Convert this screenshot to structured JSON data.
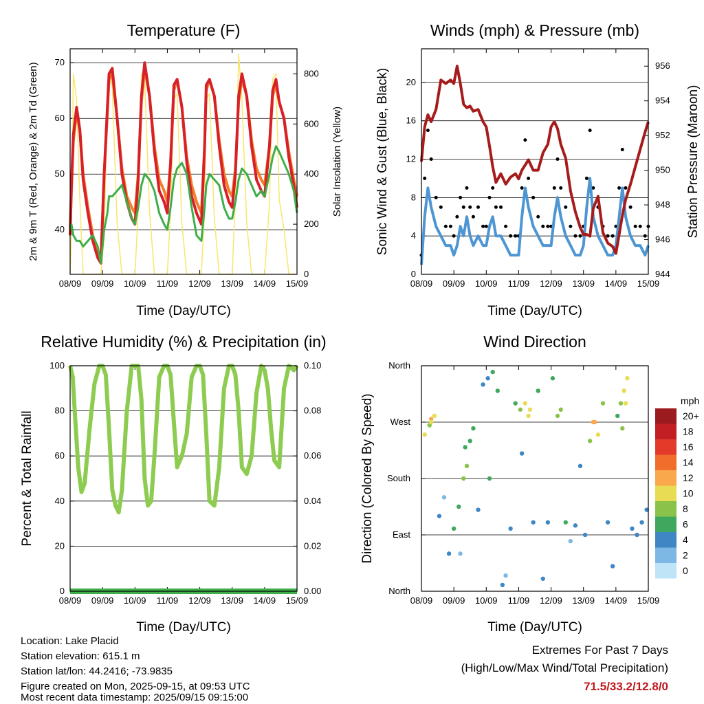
{
  "x_ticks": [
    "08/09",
    "09/09",
    "10/09",
    "11/09",
    "12/09",
    "13/09",
    "14/09",
    "15/09"
  ],
  "colors": {
    "temp2m": "#d72027",
    "temp9m": "#f47f2a",
    "dewpoint": "#3fae49",
    "solar": "#f9e66a",
    "wind": "#4d96d3",
    "gust": "#000000",
    "pressure": "#a61c1c",
    "rh": "#8dcc50",
    "precip": "#3fae49"
  },
  "chart_data": [
    {
      "type": "line",
      "title": "Temperature (F)",
      "xlabel": "Time (Day/UTC)",
      "ylabel": "2m & 9m T (Red, Orange) & 2m Td (Green)",
      "y2label": "Solar Insolation (Yellow)",
      "ylim": [
        32,
        72.5
      ],
      "y_ticks": [
        40,
        50,
        60,
        70
      ],
      "y2lim": [
        0,
        900
      ],
      "y2_ticks": [
        0,
        200,
        400,
        600,
        800
      ],
      "x": [
        0,
        0.04,
        0.1,
        0.2,
        0.3,
        0.4,
        0.55,
        0.7,
        0.85,
        0.95,
        1.05,
        1.15,
        1.2,
        1.3,
        1.45,
        1.6,
        1.75,
        1.9,
        2.0,
        2.1,
        2.2,
        2.3,
        2.45,
        2.6,
        2.75,
        2.9,
        3.0,
        3.1,
        3.2,
        3.3,
        3.45,
        3.6,
        3.75,
        3.9,
        4.05,
        4.15,
        4.2,
        4.3,
        4.45,
        4.6,
        4.75,
        4.9,
        5.0,
        5.1,
        5.2,
        5.3,
        5.45,
        5.6,
        5.75,
        5.9,
        6.0,
        6.15,
        6.25,
        6.35,
        6.45,
        6.6,
        6.75,
        6.9,
        7.0
      ],
      "series": [
        {
          "name": "2m T",
          "values": [
            39,
            48,
            57,
            62,
            58,
            49,
            43,
            38,
            35,
            34,
            50,
            62,
            68,
            69,
            60,
            50,
            45,
            42,
            41,
            49,
            64,
            70,
            64,
            54,
            47,
            45,
            43,
            52,
            66,
            67,
            62,
            52,
            46,
            43,
            41,
            55,
            66,
            67,
            64,
            55,
            48,
            45,
            44,
            50,
            64,
            68,
            64,
            55,
            49,
            47,
            46,
            55,
            65,
            67,
            63,
            60,
            53,
            48,
            44
          ]
        },
        {
          "name": "9m T",
          "values": [
            40,
            47,
            56,
            61,
            58,
            50,
            44,
            39,
            36,
            35,
            50,
            61,
            67,
            68,
            60,
            51,
            46,
            44,
            43,
            50,
            63,
            69,
            64,
            55,
            49,
            47,
            45,
            52,
            65,
            67,
            62,
            53,
            48,
            45,
            43,
            55,
            65,
            67,
            64,
            56,
            50,
            47,
            46,
            51,
            63,
            67,
            64,
            56,
            51,
            49,
            48,
            55,
            64,
            66,
            63,
            60,
            54,
            49,
            46
          ]
        },
        {
          "name": "2m Td",
          "values": [
            40,
            41,
            39,
            38,
            38,
            37,
            38,
            39,
            37,
            34,
            40,
            43,
            46,
            46,
            47,
            48,
            45,
            42,
            41,
            44,
            48,
            50,
            49,
            47,
            43,
            41,
            40,
            44,
            49,
            51,
            52,
            50,
            44,
            39,
            38,
            44,
            48,
            50,
            49,
            48,
            44,
            42,
            42,
            45,
            49,
            51,
            50,
            48,
            46,
            47,
            46,
            50,
            53,
            55,
            54,
            52,
            50,
            47,
            43
          ]
        },
        {
          "name": "Solar",
          "values": [
            0,
            150,
            800,
            700,
            300,
            0,
            0,
            0,
            0,
            0,
            150,
            700,
            800,
            750,
            200,
            0,
            0,
            0,
            0,
            250,
            800,
            780,
            250,
            0,
            0,
            0,
            0,
            250,
            700,
            720,
            200,
            0,
            0,
            0,
            0,
            250,
            700,
            720,
            220,
            0,
            0,
            0,
            0,
            300,
            880,
            700,
            200,
            0,
            0,
            0,
            0,
            280,
            780,
            800,
            300,
            180,
            0,
            0,
            0
          ]
        }
      ]
    },
    {
      "type": "line",
      "title": "Winds (mph) & Pressure (mb)",
      "xlabel": "Time (Day/UTC)",
      "ylabel": "Sonic Wind & Gust (Blue, Black)",
      "y2label": "Station Pressure (Maroon)",
      "ylim": [
        0,
        23.5
      ],
      "y_ticks": [
        0,
        4,
        8,
        12,
        16,
        20
      ],
      "y2lim": [
        944,
        957
      ],
      "y2_ticks": [
        944,
        946,
        948,
        950,
        952,
        954,
        956
      ],
      "x": [
        0,
        0.1,
        0.2,
        0.3,
        0.45,
        0.6,
        0.75,
        0.9,
        1.0,
        1.1,
        1.2,
        1.3,
        1.4,
        1.5,
        1.6,
        1.75,
        1.9,
        2.0,
        2.1,
        2.2,
        2.3,
        2.45,
        2.6,
        2.75,
        2.9,
        3.0,
        3.1,
        3.2,
        3.3,
        3.45,
        3.6,
        3.75,
        3.9,
        4.0,
        4.1,
        4.2,
        4.3,
        4.45,
        4.6,
        4.75,
        4.9,
        5.0,
        5.1,
        5.2,
        5.3,
        5.45,
        5.6,
        5.75,
        5.9,
        6.0,
        6.1,
        6.2,
        6.3,
        6.45,
        6.6,
        6.75,
        6.9,
        7.0
      ],
      "series": [
        {
          "name": "Wind",
          "values": [
            1,
            6,
            9,
            7,
            5,
            4,
            3,
            3,
            2,
            3,
            5,
            4,
            6,
            4,
            3,
            4,
            3,
            3,
            5,
            6,
            4,
            4,
            3,
            2,
            2,
            2,
            6,
            9,
            7,
            5,
            4,
            3,
            3,
            3,
            6,
            8,
            6,
            4,
            3,
            2,
            2,
            3,
            7,
            10,
            6,
            4,
            3,
            2,
            2,
            3,
            6,
            9,
            6,
            4,
            3,
            3,
            2,
            3
          ]
        },
        {
          "name": "Gust",
          "values": [
            2,
            10,
            15,
            12,
            8,
            7,
            5,
            5,
            4,
            6,
            8,
            7,
            9,
            7,
            6,
            7,
            5,
            5,
            8,
            9,
            7,
            7,
            5,
            4,
            4,
            4,
            9,
            14,
            10,
            8,
            6,
            5,
            5,
            5,
            9,
            12,
            9,
            7,
            5,
            4,
            4,
            5,
            10,
            15,
            9,
            7,
            5,
            4,
            4,
            5,
            9,
            13,
            9,
            7,
            5,
            5,
            4,
            5
          ]
        },
        {
          "name": "Pressure",
          "values": [
            950.5,
            952.5,
            953.2,
            952.8,
            953.5,
            955.2,
            955.0,
            955.2,
            955.0,
            956.0,
            955.0,
            953.8,
            953.6,
            953.7,
            953.4,
            953.5,
            952.8,
            952.5,
            951.4,
            950.2,
            949.3,
            949.8,
            949.2,
            949.6,
            949.8,
            949.5,
            950.0,
            950.3,
            950.6,
            950.0,
            950.0,
            951.0,
            951.5,
            952.5,
            952.8,
            952.4,
            951.5,
            950.7,
            948.8,
            947.6,
            946.7,
            946.3,
            946.3,
            946.2,
            947.8,
            948.5,
            946.4,
            945.8,
            945.6,
            945.2,
            946.3,
            947.4,
            948.3,
            949.2,
            950.2,
            951.2,
            952.2,
            952.8
          ]
        }
      ]
    },
    {
      "type": "line",
      "title": "Relative Humidity (%) & Precipitation (in)",
      "xlabel": "Time (Day/UTC)",
      "ylabel": "Percent & Total Rainfall",
      "ylim": [
        0,
        100
      ],
      "y_ticks": [
        0,
        20,
        40,
        60,
        80,
        100
      ],
      "y2lim": [
        0,
        0.1
      ],
      "y2_ticks": [
        "0.00",
        "0.02",
        "0.04",
        "0.06",
        "0.08",
        "0.10"
      ],
      "x": [
        0,
        0.08,
        0.15,
        0.25,
        0.35,
        0.45,
        0.6,
        0.75,
        0.9,
        1.0,
        1.1,
        1.2,
        1.3,
        1.4,
        1.5,
        1.6,
        1.75,
        1.9,
        2.0,
        2.1,
        2.2,
        2.3,
        2.4,
        2.5,
        2.6,
        2.75,
        2.9,
        3.0,
        3.1,
        3.2,
        3.3,
        3.45,
        3.6,
        3.75,
        3.9,
        4.0,
        4.1,
        4.2,
        4.3,
        4.45,
        4.6,
        4.75,
        4.9,
        5.0,
        5.1,
        5.2,
        5.3,
        5.45,
        5.6,
        5.75,
        5.9,
        6.0,
        6.1,
        6.2,
        6.3,
        6.45,
        6.6,
        6.75,
        6.9,
        7.0
      ],
      "series": [
        {
          "name": "RH",
          "values": [
            100,
            95,
            78,
            55,
            44,
            48,
            72,
            92,
            100,
            100,
            96,
            72,
            45,
            38,
            35,
            45,
            80,
            100,
            100,
            100,
            85,
            50,
            38,
            40,
            60,
            95,
            100,
            100,
            96,
            75,
            55,
            60,
            70,
            95,
            100,
            100,
            96,
            70,
            40,
            38,
            55,
            90,
            100,
            100,
            96,
            80,
            55,
            52,
            60,
            88,
            100,
            98,
            90,
            72,
            58,
            55,
            90,
            100,
            98,
            100
          ]
        },
        {
          "name": "Precip",
          "values": [
            0,
            0,
            0,
            0,
            0,
            0,
            0,
            0,
            0,
            0,
            0,
            0,
            0,
            0,
            0,
            0,
            0,
            0,
            0,
            0,
            0,
            0,
            0,
            0,
            0,
            0,
            0,
            0,
            0,
            0,
            0,
            0,
            0,
            0,
            0,
            0,
            0,
            0,
            0,
            0,
            0,
            0,
            0,
            0,
            0,
            0,
            0,
            0,
            0,
            0,
            0,
            0,
            0,
            0,
            0,
            0,
            0,
            0,
            0,
            0
          ]
        }
      ]
    },
    {
      "type": "scatter",
      "title": "Wind Direction",
      "xlabel": "Time (Day/UTC)",
      "ylabel": "Direction (Colored By Speed)",
      "y_ticks": [
        "North",
        "East",
        "South",
        "West",
        "North"
      ],
      "ylim": [
        0,
        360
      ],
      "legend_title": "mph",
      "legend_labels": [
        "20+",
        "18",
        "16",
        "14",
        "12",
        "10",
        "8",
        "6",
        "4",
        "2",
        "0"
      ],
      "legend_colors": [
        "#9b1b1e",
        "#c21f24",
        "#e23b2a",
        "#f16d2b",
        "#faa84c",
        "#e9dc55",
        "#8bc34a",
        "#3fa85e",
        "#3e86c4",
        "#7db7e3",
        "#bfe3f7"
      ],
      "x": [
        0.1,
        0.25,
        0.4,
        0.3,
        0.55,
        0.7,
        0.85,
        1.0,
        1.15,
        1.3,
        1.4,
        1.5,
        1.6,
        1.75,
        1.9,
        2.05,
        2.2,
        2.35,
        2.5,
        2.6,
        2.75,
        2.9,
        3.05,
        3.2,
        3.3,
        3.45,
        3.6,
        3.75,
        3.9,
        4.05,
        4.2,
        4.3,
        4.45,
        4.6,
        4.75,
        4.9,
        5.05,
        5.2,
        5.3,
        5.45,
        5.6,
        5.75,
        5.9,
        6.05,
        6.15,
        6.25,
        6.35,
        6.5,
        6.65,
        6.8,
        6.95,
        6.2,
        0.3,
        1.35,
        3.35,
        5.35,
        6.3,
        1.2,
        2.1,
        3.1
      ],
      "y": [
        250,
        265,
        280,
        275,
        120,
        150,
        60,
        100,
        135,
        180,
        200,
        240,
        260,
        130,
        330,
        340,
        350,
        320,
        10,
        25,
        100,
        300,
        290,
        300,
        280,
        110,
        320,
        20,
        110,
        340,
        280,
        290,
        110,
        80,
        105,
        200,
        90,
        240,
        270,
        250,
        300,
        110,
        40,
        280,
        300,
        320,
        340,
        100,
        90,
        110,
        130,
        260,
        270,
        230,
        290,
        270,
        300,
        60,
        180,
        220
      ],
      "speed": [
        10,
        8,
        10,
        11,
        4,
        2,
        3,
        6,
        6,
        7,
        8,
        6,
        5,
        3,
        4,
        4,
        5,
        6,
        4,
        2,
        3,
        5,
        8,
        9,
        10,
        4,
        5,
        3,
        4,
        5,
        7,
        8,
        5,
        2,
        4,
        3,
        4,
        8,
        12,
        9,
        8,
        4,
        3,
        6,
        8,
        9,
        10,
        4,
        3,
        4,
        3,
        7,
        9,
        6,
        10,
        11,
        9,
        2,
        5,
        3
      ]
    }
  ],
  "footer": {
    "location": "Location: Lake Placid",
    "elevation": "Station elevation: 615.1 m",
    "latlon": "Station lat/lon: 44.2416; -73.9835",
    "created": "Figure created on Mon, 2025-09-15, at 09:53 UTC",
    "recent": "Most recent data timestamp: 2025/09/15 09:15:00"
  },
  "extremes": {
    "heading": "Extremes For Past 7 Days",
    "subheading": "(High/Low/Max Wind/Total Precipitation)",
    "values": "71.5/33.2/12.8/0"
  }
}
